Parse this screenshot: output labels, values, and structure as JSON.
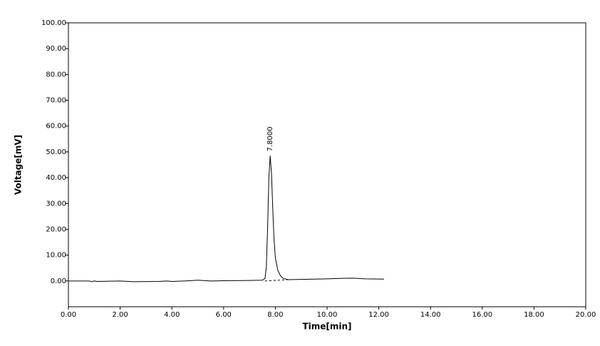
{
  "chart_data": {
    "type": "line",
    "xlabel": "Time[min]",
    "ylabel": "Voltage[mV]",
    "x": [
      0,
      0.8,
      0.9,
      1.0,
      1.1,
      2.0,
      2.5,
      3.5,
      3.8,
      4.0,
      4.5,
      5.0,
      5.5,
      6.0,
      7.0,
      7.5,
      7.6,
      7.65,
      7.7,
      7.75,
      7.8,
      7.85,
      7.9,
      7.95,
      8.0,
      8.1,
      8.2,
      8.3,
      8.5,
      9.0,
      10.0,
      10.5,
      11.0,
      11.5,
      12.2
    ],
    "values": [
      0,
      0,
      -0.3,
      0,
      -0.2,
      0,
      -0.3,
      -0.2,
      0,
      -0.2,
      0,
      0.3,
      0,
      0.1,
      0.2,
      0.3,
      1,
      5,
      20,
      40,
      48.5,
      42,
      28,
      16,
      9,
      4,
      2,
      1,
      0.5,
      0.6,
      0.8,
      1,
      1.1,
      0.8,
      0.7
    ],
    "color": "#000000",
    "baseline_x": [
      7.6,
      8.5
    ],
    "baseline_y": [
      0,
      0.5
    ],
    "annotations": [
      {
        "text": "7.8000",
        "x": 7.8,
        "y": 48.5
      }
    ],
    "xlim": [
      0,
      20
    ],
    "xticks": [
      {
        "value": 0,
        "label": "0.00"
      },
      {
        "value": 2,
        "label": "2.00"
      },
      {
        "value": 4,
        "label": "4.00"
      },
      {
        "value": 6,
        "label": "6.00"
      },
      {
        "value": 8,
        "label": "8.00"
      },
      {
        "value": 10,
        "label": "10.00"
      },
      {
        "value": 12,
        "label": "12.00"
      },
      {
        "value": 14,
        "label": "14.00"
      },
      {
        "value": 16,
        "label": "16.00"
      },
      {
        "value": 18,
        "label": "18.00"
      },
      {
        "value": 20,
        "label": "20.00"
      }
    ],
    "ylim": [
      -10,
      100
    ],
    "yticks": [
      {
        "value": 0,
        "label": "0.00"
      },
      {
        "value": 10,
        "label": "10.00"
      },
      {
        "value": 20,
        "label": "20.00"
      },
      {
        "value": 30,
        "label": "30.00"
      },
      {
        "value": 40,
        "label": "40.00"
      },
      {
        "value": 50,
        "label": "50.00"
      },
      {
        "value": 60,
        "label": "60.00"
      },
      {
        "value": 70,
        "label": "70.00"
      },
      {
        "value": 80,
        "label": "80.00"
      },
      {
        "value": 90,
        "label": "90.00"
      },
      {
        "value": 100,
        "label": "100.00"
      }
    ]
  }
}
